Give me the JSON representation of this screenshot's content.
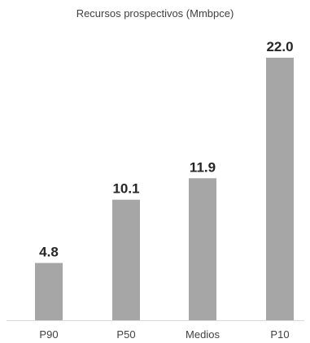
{
  "chart_data": {
    "type": "bar",
    "title": "Recursos prospectivos (Mmbpce)",
    "categories": [
      "P90",
      "P50",
      "Medios",
      "P10"
    ],
    "values": [
      4.8,
      10.1,
      11.9,
      22.0
    ],
    "value_labels": [
      "4.8",
      "10.1",
      "11.9",
      "22.0"
    ],
    "xlabel": "",
    "ylabel": "",
    "ylim": [
      0,
      22.0
    ],
    "grid": false,
    "legend": "none",
    "bar_color": "#a6a6a6",
    "axis_color": "#d9d9d9"
  }
}
